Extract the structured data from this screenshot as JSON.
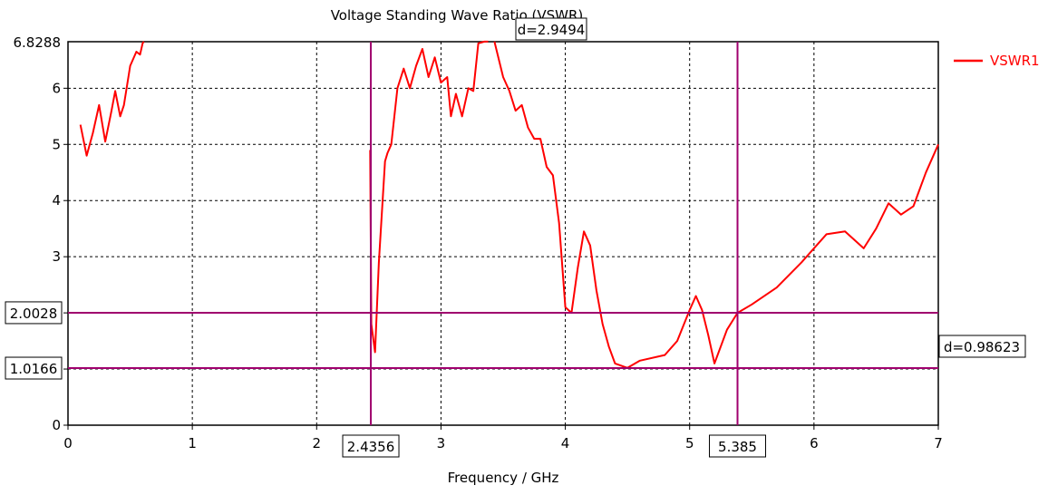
{
  "chart_data": {
    "type": "line",
    "title": "Voltage Standing Wave Ratio (VSWR)",
    "xlabel": "Frequency / GHz",
    "ylabel": "",
    "xlim": [
      0,
      7
    ],
    "ylim": [
      0,
      6.8288
    ],
    "grid": true,
    "legend_position": "top-right",
    "x_ticks": [
      "0",
      "1",
      "2",
      "3",
      "4",
      "5",
      "6",
      "7"
    ],
    "y_ticks": [
      "0",
      "1",
      "2",
      "3",
      "4",
      "5",
      "6"
    ],
    "y_top_label": "6.8288",
    "series": [
      {
        "name": "VSWR1",
        "color": "#ff0000",
        "x": [
          0.1,
          0.15,
          0.2,
          0.25,
          0.3,
          0.35,
          0.38,
          0.42,
          0.45,
          0.5,
          0.55,
          0.58,
          0.6,
          0.61
        ],
        "y": [
          5.35,
          4.8,
          5.2,
          5.7,
          5.05,
          5.6,
          5.95,
          5.5,
          5.7,
          6.4,
          6.65,
          6.6,
          6.8,
          6.83
        ]
      },
      {
        "name": "VSWR1",
        "color": "#ff0000",
        "x": [
          2.43,
          2.44,
          2.47,
          2.5,
          2.55,
          2.57,
          2.6,
          2.65,
          2.7,
          2.75,
          2.8,
          2.85,
          2.9,
          2.95,
          3.0,
          3.05,
          3.08,
          3.12,
          3.17,
          3.22,
          3.26,
          3.3,
          3.35,
          3.38
        ],
        "y": [
          4.9,
          1.8,
          1.3,
          2.9,
          4.7,
          4.85,
          5.0,
          6.0,
          6.35,
          6.0,
          6.4,
          6.7,
          6.2,
          6.55,
          6.1,
          6.2,
          5.5,
          5.9,
          5.5,
          6.0,
          5.95,
          6.8,
          6.83,
          6.83
        ]
      },
      {
        "name": "VSWR1",
        "color": "#ff0000",
        "x": [
          3.43,
          3.5,
          3.55,
          3.6,
          3.65,
          3.7,
          3.75,
          3.8,
          3.85,
          3.9,
          3.95,
          4.0,
          4.05,
          4.1,
          4.15,
          4.2,
          4.25,
          4.3,
          4.35,
          4.4,
          4.5,
          4.6,
          4.8,
          4.9,
          5.0,
          5.05,
          5.1,
          5.15,
          5.2,
          5.3,
          5.385,
          5.5,
          5.7,
          5.9,
          6.1,
          6.25,
          6.3,
          6.4,
          6.5,
          6.6,
          6.7,
          6.8,
          6.9,
          7.0
        ],
        "y": [
          6.83,
          6.2,
          5.95,
          5.6,
          5.7,
          5.3,
          5.1,
          5.1,
          4.6,
          4.45,
          3.6,
          2.1,
          2.0,
          2.8,
          3.45,
          3.2,
          2.4,
          1.8,
          1.4,
          1.1,
          1.02,
          1.15,
          1.25,
          1.5,
          2.05,
          2.3,
          2.05,
          1.6,
          1.1,
          1.7,
          2.0,
          2.15,
          2.45,
          2.9,
          3.4,
          3.45,
          3.35,
          3.15,
          3.5,
          3.95,
          3.75,
          3.9,
          4.5,
          5.0
        ]
      }
    ],
    "markers": {
      "horizontal": [
        {
          "value": 2.0028,
          "label": "2.0028"
        },
        {
          "value": 1.0166,
          "label": "1.0166"
        }
      ],
      "vertical": [
        {
          "value": 2.4356,
          "label": "2.4356"
        },
        {
          "value": 5.385,
          "label": "5.385"
        }
      ],
      "delta_labels": [
        "d=2.9494",
        "d=0.98623"
      ],
      "color": "#a0006e"
    }
  }
}
